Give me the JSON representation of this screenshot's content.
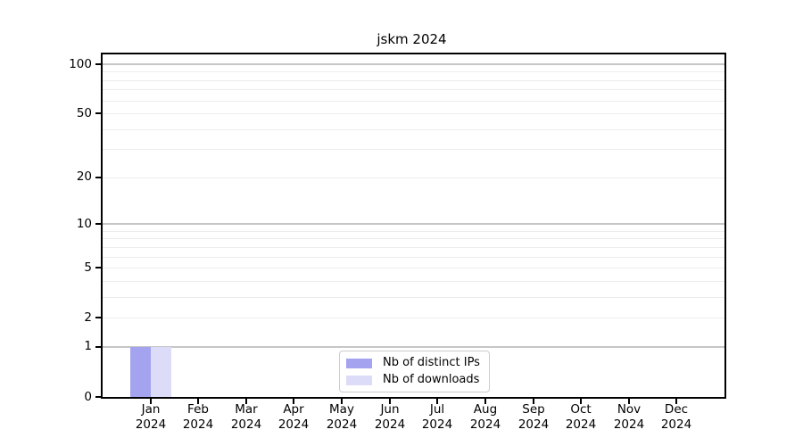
{
  "chart_data": {
    "type": "bar",
    "title": "jskm 2024",
    "x_axis": {
      "months": [
        "Jan",
        "Feb",
        "Mar",
        "Apr",
        "May",
        "Jun",
        "Jul",
        "Aug",
        "Sep",
        "Oct",
        "Nov",
        "Dec"
      ],
      "year": "2024"
    },
    "y_axis": {
      "scale": "log1p",
      "tick_values": [
        0,
        1,
        2,
        5,
        10,
        20,
        50,
        100
      ],
      "major_gridlines": [
        1,
        10,
        100
      ],
      "minor_gridlines": [
        2,
        3,
        4,
        5,
        6,
        7,
        8,
        9,
        20,
        30,
        40,
        50,
        60,
        70,
        80,
        90
      ],
      "ylim": [
        0,
        115
      ]
    },
    "series": [
      {
        "name": "Nb of distinct IPs",
        "color": "#a3a3f0",
        "values": [
          1,
          0,
          0,
          0,
          0,
          0,
          0,
          0,
          0,
          0,
          0,
          0
        ]
      },
      {
        "name": "Nb of downloads",
        "color": "#dcdcf8",
        "values": [
          1,
          0,
          0,
          0,
          0,
          0,
          0,
          0,
          0,
          0,
          0,
          0
        ]
      }
    ],
    "legend": {
      "position": "lower center"
    },
    "grid": true
  },
  "colors": {
    "background": "#ffffff",
    "spine": "#000000",
    "major_grid": "#c6c6c6",
    "minor_grid": "#ececec",
    "bar_distinct_ips": "#a3a3f0",
    "bar_downloads": "#dcdcf8"
  }
}
